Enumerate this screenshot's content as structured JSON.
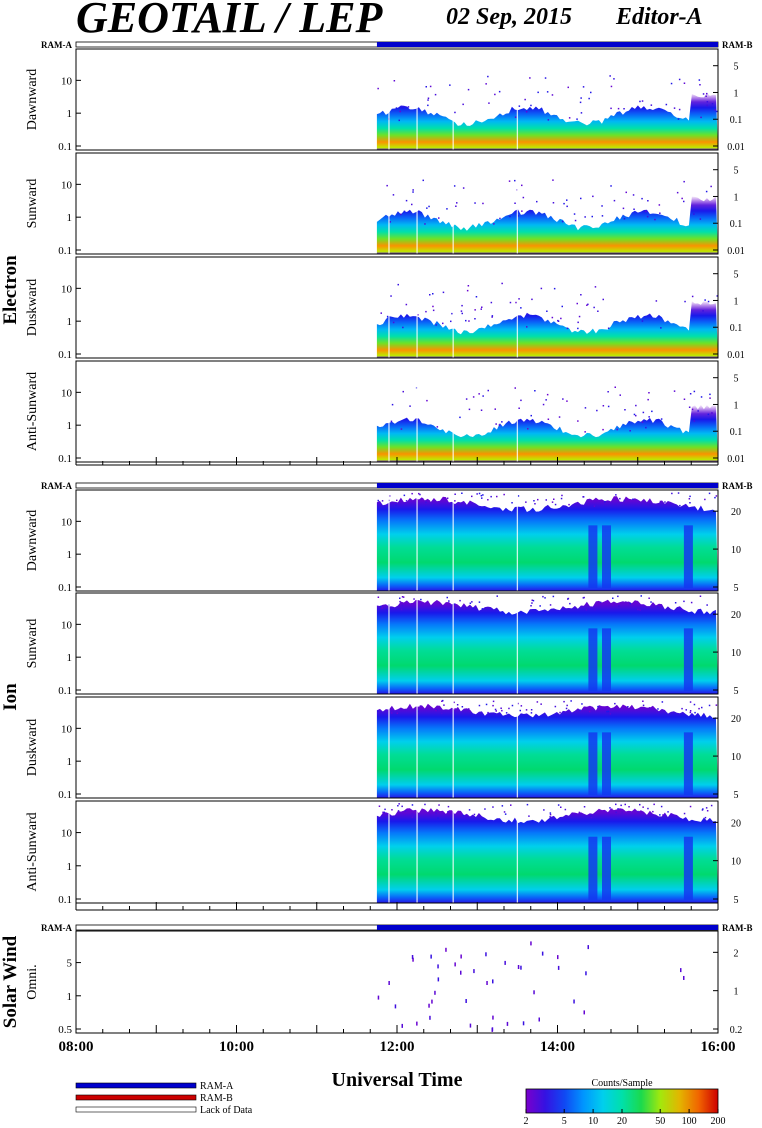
{
  "header": {
    "title": "GEOTAIL / LEP",
    "date": "02 Sep, 2015",
    "editor": "Editor-A"
  },
  "colors": {
    "ram_a": "#0000cc",
    "ram_b": "#cc0000",
    "lack": "#ffffff",
    "spectrum_low": "#7a00cc",
    "spectrum_high": "#cc0000"
  },
  "chart_data": {
    "type": "heatmap",
    "xlabel": "Universal Time",
    "x_ticks": [
      "08:00",
      "10:00",
      "12:00",
      "14:00",
      "16:00"
    ],
    "x_range": [
      "08:00",
      "16:00"
    ],
    "data_start": "11:45",
    "gaps": [
      "11:54",
      "12:15",
      "12:42",
      "13:30"
    ],
    "ram_labels": {
      "left": "RAM-A",
      "right": "RAM-B"
    },
    "groups": [
      {
        "name": "Electron",
        "panels": [
          {
            "label": "Dawnward",
            "left_ticks": [
              "0.1",
              "1",
              "10"
            ],
            "right_ticks": [
              "0.01",
              "0.1",
              "1",
              "5"
            ]
          },
          {
            "label": "Sunward",
            "left_ticks": [
              "0.1",
              "1",
              "10"
            ],
            "right_ticks": [
              "0.01",
              "0.1",
              "1",
              "5"
            ]
          },
          {
            "label": "Duskward",
            "left_ticks": [
              "0.1",
              "1",
              "10"
            ],
            "right_ticks": [
              "0.01",
              "0.1",
              "1",
              "5"
            ]
          },
          {
            "label": "Anti-Sunward",
            "left_ticks": [
              "0.1",
              "1",
              "10"
            ],
            "right_ticks": [
              "0.01",
              "0.1",
              "1",
              "5"
            ]
          }
        ]
      },
      {
        "name": "Ion",
        "panels": [
          {
            "label": "Dawnward",
            "left_ticks": [
              "0.1",
              "1",
              "10"
            ],
            "right_ticks": [
              "5",
              "10",
              "20"
            ]
          },
          {
            "label": "Sunward",
            "left_ticks": [
              "0.1",
              "1",
              "10"
            ],
            "right_ticks": [
              "5",
              "10",
              "20"
            ]
          },
          {
            "label": "Duskward",
            "left_ticks": [
              "0.1",
              "1",
              "10"
            ],
            "right_ticks": [
              "5",
              "10",
              "20"
            ]
          },
          {
            "label": "Anti-Sunward",
            "left_ticks": [
              "0.1",
              "1",
              "10"
            ],
            "right_ticks": [
              "5",
              "10",
              "20"
            ]
          }
        ]
      },
      {
        "name": "Solar Wind",
        "panels": [
          {
            "label": "Omni.",
            "left_ticks": [
              "0.5",
              "1",
              "5"
            ],
            "right_ticks": [
              "0.2",
              "1",
              "2"
            ]
          }
        ]
      }
    ],
    "legend": {
      "items": [
        "RAM-A",
        "RAM-B",
        "Lack of Data"
      ],
      "colorbar_title": "Counts/Sample",
      "colorbar_ticks": [
        "2",
        "5",
        "10",
        "20",
        "50",
        "100",
        "200"
      ]
    }
  }
}
